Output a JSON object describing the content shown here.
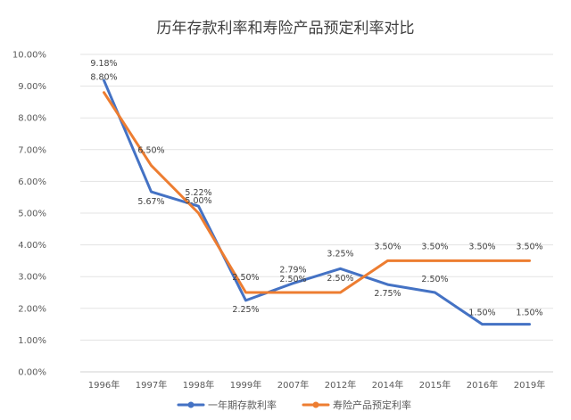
{
  "chart_data": {
    "type": "line",
    "title": "历年存款利率和寿险产品预定利率对比",
    "xlabel": "",
    "ylabel": "",
    "categories": [
      "1996年",
      "1997年",
      "1998年",
      "1999年",
      "2007年",
      "2012年",
      "2014年",
      "2015年",
      "2016年",
      "2019年"
    ],
    "ylim": [
      0,
      10
    ],
    "y_ticks": [
      "0.00%",
      "1.00%",
      "2.00%",
      "3.00%",
      "4.00%",
      "5.00%",
      "6.00%",
      "7.00%",
      "8.00%",
      "9.00%",
      "10.00%"
    ],
    "grid": true,
    "legend_position": "bottom",
    "series": [
      {
        "name": "一年期存款利率",
        "color": "#4472C4",
        "values": [
          9.18,
          5.67,
          5.22,
          2.25,
          2.79,
          3.25,
          2.75,
          2.5,
          1.5,
          1.5
        ],
        "labels": [
          "9.18%",
          "5.67%",
          "5.22%",
          "2.25%",
          "2.79%",
          "3.25%",
          "2.75%",
          "2.50%",
          "1.50%",
          "1.50%"
        ]
      },
      {
        "name": "寿险产品预定利率",
        "color": "#ED7D31",
        "values": [
          8.8,
          6.5,
          5.0,
          2.5,
          2.5,
          2.5,
          3.5,
          3.5,
          3.5,
          3.5
        ],
        "labels": [
          "8.80%",
          "6.50%",
          "5.00%",
          "2.50%",
          "2.50%",
          "2.50%",
          "3.50%",
          "3.50%",
          "3.50%",
          "3.50%"
        ]
      }
    ]
  }
}
